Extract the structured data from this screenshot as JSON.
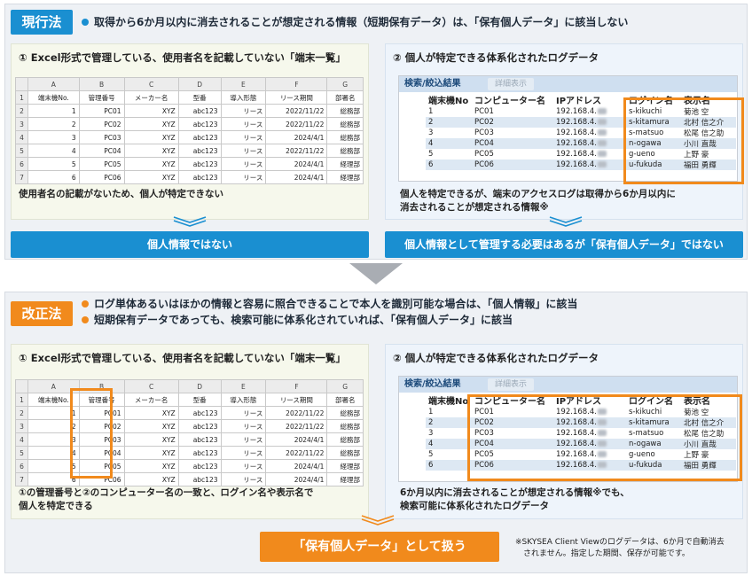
{
  "top": {
    "badge": "現行法",
    "header": "取得から6か月以内に消去されることが想定される情報（短期保有データ）は、「保有個人データ」に該当しない",
    "left_panel": {
      "title": "① Excel形式で管理している、使用者名を記載していない「端末一覧」",
      "note": "使用者名の記載がないため、個人が特定できない",
      "result": "個人情報ではない"
    },
    "right_panel": {
      "title": "② 個人が特定できる体系化されたログデータ",
      "note_line1": "個人を特定できるが、端末のアクセスログは取得から6か月以内に",
      "note_line2": "消去されることが想定される情報※",
      "result": "個人情報として管理する必要はあるが「保有個人データ」ではない"
    }
  },
  "bottom": {
    "badge": "改正法",
    "header_line1": "ログ単体あるいはほかの情報と容易に照合できることで本人を識別可能な場合は、「個人情報」に該当",
    "header_line2": "短期保有データであっても、検索可能に体系化されていれば、「保有個人データ」に該当",
    "left_panel": {
      "title": "① Excel形式で管理している、使用者名を記載していない「端末一覧」",
      "note_line1": "①の管理番号と②のコンピューター名の一致と、ログイン名や表示名で",
      "note_line2": "個人を特定できる"
    },
    "right_panel": {
      "title": "② 個人が特定できる体系化されたログデータ",
      "note_line1": "6か月以内に消去されることが想定される情報※でも、",
      "note_line2": "検索可能に体系化されたログデータ"
    },
    "result": "「保有個人データ」として扱う"
  },
  "footnote_line1": "※SKYSEA Client Viewのログデータは、6か月で自動消去",
  "footnote_line2": "されません。指定した期間、保存が可能です。",
  "excel": {
    "col_letters": [
      "",
      "A",
      "B",
      "C",
      "D",
      "E",
      "F",
      "G"
    ],
    "headers": [
      "端末機No.",
      "管理番号",
      "メーカー名",
      "型番",
      "導入形態",
      "リース期間",
      "部署名"
    ],
    "rows": [
      [
        "1",
        "PC01",
        "XYZ",
        "abc123",
        "リース",
        "2022/11/22",
        "総務部"
      ],
      [
        "2",
        "PC02",
        "XYZ",
        "abc123",
        "リース",
        "2022/11/22",
        "総務部"
      ],
      [
        "3",
        "PC03",
        "XYZ",
        "abc123",
        "リース",
        "2024/4/1",
        "総務部"
      ],
      [
        "4",
        "PC04",
        "XYZ",
        "abc123",
        "リース",
        "2022/11/22",
        "総務部"
      ],
      [
        "5",
        "PC05",
        "XYZ",
        "abc123",
        "リース",
        "2024/4/1",
        "経理部"
      ],
      [
        "6",
        "PC06",
        "XYZ",
        "abc123",
        "リース",
        "2024/4/1",
        "経理部"
      ]
    ]
  },
  "log": {
    "bar_title": "検索/絞込結果",
    "detail_button": "詳細表示",
    "headers": [
      "端末機No",
      "コンピューター名",
      "IPアドレス",
      "ログイン名",
      "表示名"
    ],
    "rows": [
      [
        "1",
        "PC01",
        "192.168.4.",
        "s-kikuchi",
        "菊池 空"
      ],
      [
        "2",
        "PC02",
        "192.168.4.",
        "s-kitamura",
        "北村 信之介"
      ],
      [
        "3",
        "PC03",
        "192.168.4.",
        "s-matsuo",
        "松尾 信之助"
      ],
      [
        "4",
        "PC04",
        "192.168.4.",
        "n-ogawa",
        "小川 直哉"
      ],
      [
        "5",
        "PC05",
        "192.168.4.",
        "g-ueno",
        "上野 豪"
      ],
      [
        "6",
        "PC06",
        "192.168.4.",
        "u-fukuda",
        "福田 勇輝"
      ]
    ]
  }
}
